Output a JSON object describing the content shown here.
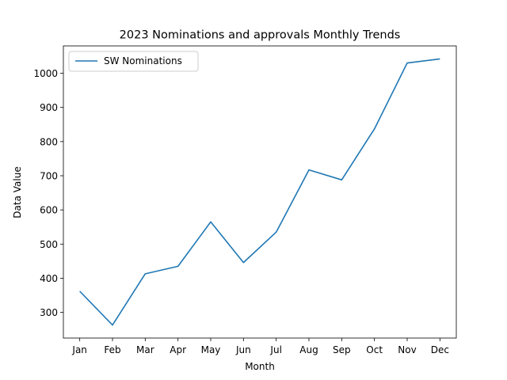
{
  "chart_data": {
    "type": "line",
    "title": "2023 Nominations and approvals Monthly Trends",
    "xlabel": "Month",
    "ylabel": "Data Value",
    "categories": [
      "Jan",
      "Feb",
      "Mar",
      "Apr",
      "May",
      "Jun",
      "Jul",
      "Aug",
      "Sep",
      "Oct",
      "Nov",
      "Dec"
    ],
    "series": [
      {
        "name": "SW Nominations",
        "color": "#1f77b4",
        "values": [
          362,
          263,
          413,
          435,
          565,
          446,
          535,
          717,
          688,
          837,
          1030,
          1042
        ]
      }
    ],
    "ylim": [
      225,
      1080
    ],
    "yticks": [
      300,
      400,
      500,
      600,
      700,
      800,
      900,
      1000
    ],
    "grid": false,
    "legend_position": "top-left"
  }
}
